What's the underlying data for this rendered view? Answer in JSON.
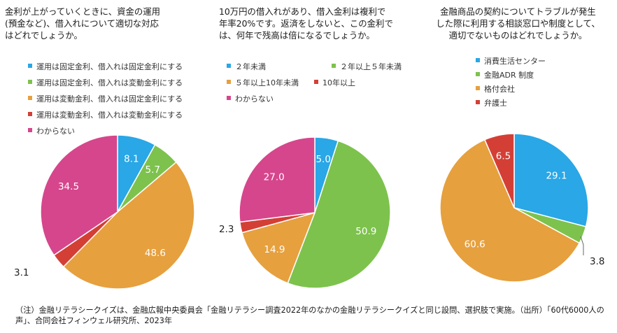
{
  "colors": {
    "blue": "#29a7e6",
    "green": "#7dc24d",
    "orange": "#e6a03e",
    "red": "#d43f35",
    "pink": "#d6468c",
    "label_light": "#ffffff",
    "label_dark": "#222222"
  },
  "note": "（注）金融リテラシークイズは、金融広報中央委員会「金融リテラシー調査2022年のなかの金融リテラシークイズと同じ設問、選択肢で実施。（出所）「60代6000人の声」、合同会社フィンウェル研究所、2023年",
  "chart_data": [
    {
      "type": "pie",
      "title": "金利が上がっていくときに、資金の運用\n(預金など)、借入れについて適切な対応\nはどれでしょうか。",
      "categories": [
        "運用は固定金利、借入れは固定金利にする",
        "運用は固定金利、借入れは変動金利にする",
        "運用は変動金利、借入れは固定金利にする",
        "運用は変動金利、借入れは変動金利にする",
        "わからない"
      ],
      "values": [
        8.1,
        5.7,
        48.6,
        3.1,
        34.5
      ],
      "value_labels": [
        "8.1",
        "5.7",
        "48.6",
        "3.1",
        "34.5"
      ],
      "colors": [
        "#29a7e6",
        "#7dc24d",
        "#e6a03e",
        "#d43f35",
        "#d6468c"
      ],
      "start": "12 o'clock, clockwise"
    },
    {
      "type": "pie",
      "title": "10万円の借入れがあり、借入金利は複利で\n年率20%です。返済をしないと、この金利で\nは、何年で残高は倍になるでしょうか。",
      "categories": [
        "２年未満",
        "２年以上５年未満",
        "５年以上10年未満",
        "10年以上",
        "わからない"
      ],
      "values": [
        5.0,
        50.9,
        14.9,
        2.3,
        27.0
      ],
      "value_labels": [
        "5.0",
        "50.9",
        "14.9",
        "2.3",
        "27.0"
      ],
      "colors": [
        "#29a7e6",
        "#7dc24d",
        "#e6a03e",
        "#d43f35",
        "#d6468c"
      ],
      "start": "12 o'clock, clockwise"
    },
    {
      "type": "pie",
      "title": "金融商品の契約についてトラブルが発生\nした際に利用する相談窓口や制度として、\n適切でないものはどれでしょうか。",
      "categories": [
        "消費生活センター",
        "金融ADR 制度",
        "格付会社",
        "弁護士"
      ],
      "values": [
        29.1,
        3.8,
        60.6,
        6.5
      ],
      "value_labels": [
        "29.1",
        "3.8",
        "60.6",
        "6.5"
      ],
      "colors": [
        "#29a7e6",
        "#7dc24d",
        "#e6a03e",
        "#d43f35"
      ],
      "start": "12 o'clock, clockwise"
    }
  ]
}
